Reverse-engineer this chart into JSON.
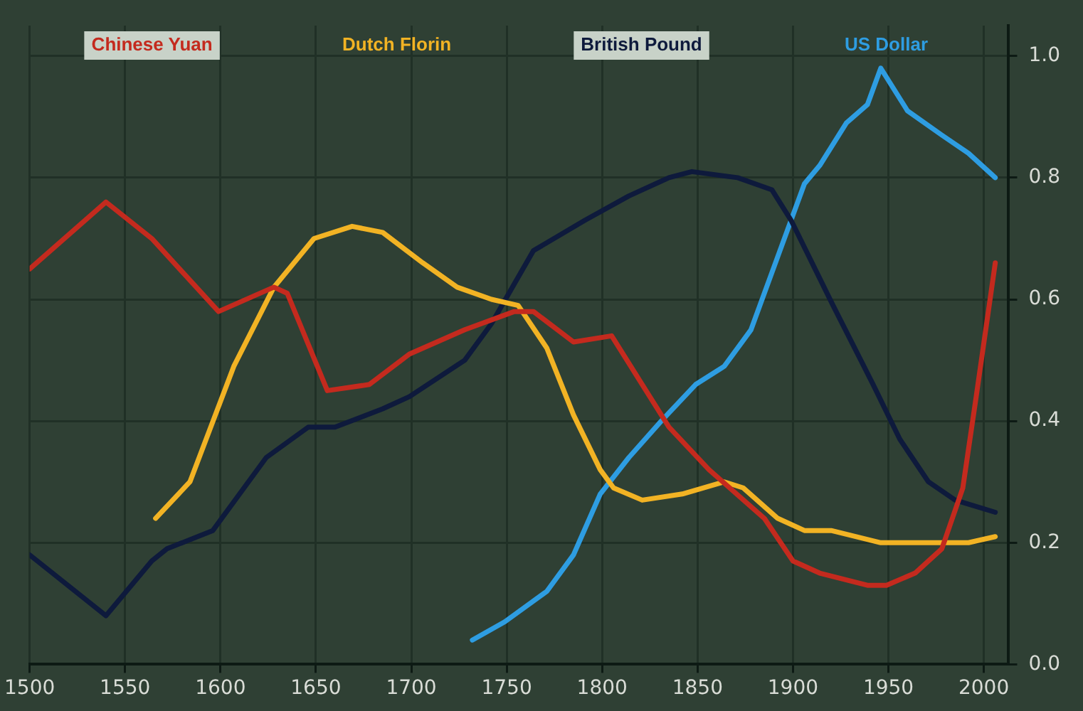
{
  "chart_data": {
    "type": "line",
    "xlim": [
      1500,
      2013
    ],
    "xticks": [
      1500,
      1550,
      1600,
      1650,
      1700,
      1750,
      1800,
      1850,
      1900,
      1950,
      2000
    ],
    "ylim": [
      0,
      1.05
    ],
    "yticks": [
      {
        "value": 0,
        "label": "0.0"
      },
      0.2,
      0.4,
      0.6,
      0.8,
      {
        "value": 1,
        "label": "1.0"
      }
    ],
    "grid": true,
    "legend": false,
    "marker": "none",
    "line_style": "solid",
    "series": [
      {
        "name": "Chinese Yuan",
        "color": "#c42a1e",
        "x": [
          1500,
          1540,
          1564,
          1599,
          1628,
          1635,
          1656,
          1678,
          1699,
          1728,
          1754,
          1764,
          1785,
          1805,
          1821,
          1835,
          1856,
          1885,
          1900,
          1914,
          1939,
          1949,
          1964,
          1978,
          1989,
          1996,
          2006
        ],
        "values": [
          0.65,
          0.76,
          0.7,
          0.58,
          0.62,
          0.61,
          0.45,
          0.46,
          0.51,
          0.55,
          0.58,
          0.58,
          0.53,
          0.54,
          0.46,
          0.39,
          0.32,
          0.24,
          0.17,
          0.15,
          0.13,
          0.13,
          0.15,
          0.19,
          0.29,
          0.44,
          0.66
        ]
      },
      {
        "name": "Dutch Florin",
        "color": "#f2b324",
        "x": [
          1566,
          1584,
          1607,
          1628,
          1649,
          1669,
          1685,
          1706,
          1724,
          1742,
          1756,
          1771,
          1785,
          1799,
          1806,
          1821,
          1842,
          1864,
          1874,
          1892,
          1906,
          1920,
          1946,
          1964,
          1981,
          1992,
          2006
        ],
        "values": [
          0.24,
          0.3,
          0.49,
          0.62,
          0.7,
          0.72,
          0.71,
          0.66,
          0.62,
          0.6,
          0.59,
          0.52,
          0.41,
          0.32,
          0.29,
          0.27,
          0.28,
          0.3,
          0.29,
          0.24,
          0.22,
          0.22,
          0.2,
          0.2,
          0.2,
          0.2,
          0.21
        ]
      },
      {
        "name": "British Pound",
        "color": "#0e1a3c",
        "x": [
          1500,
          1540,
          1564,
          1572,
          1596,
          1624,
          1646,
          1660,
          1685,
          1699,
          1728,
          1742,
          1764,
          1791,
          1814,
          1835,
          1847,
          1871,
          1889,
          1899,
          1921,
          1942,
          1956,
          1971,
          1985,
          2006
        ],
        "values": [
          0.18,
          0.08,
          0.17,
          0.19,
          0.22,
          0.34,
          0.39,
          0.39,
          0.42,
          0.44,
          0.5,
          0.56,
          0.68,
          0.73,
          0.77,
          0.8,
          0.81,
          0.8,
          0.78,
          0.73,
          0.59,
          0.46,
          0.37,
          0.3,
          0.27,
          0.25
        ]
      },
      {
        "name": "US Dollar",
        "color": "#2e9de2",
        "x": [
          1732,
          1749,
          1771,
          1785,
          1799,
          1814,
          1831,
          1849,
          1864,
          1878,
          1892,
          1906,
          1914,
          1928,
          1939,
          1946,
          1960,
          1978,
          1992,
          2006
        ],
        "values": [
          0.04,
          0.07,
          0.12,
          0.18,
          0.28,
          0.34,
          0.4,
          0.46,
          0.49,
          0.55,
          0.67,
          0.79,
          0.82,
          0.89,
          0.92,
          0.98,
          0.91,
          0.87,
          0.84,
          0.8
        ]
      }
    ]
  }
}
